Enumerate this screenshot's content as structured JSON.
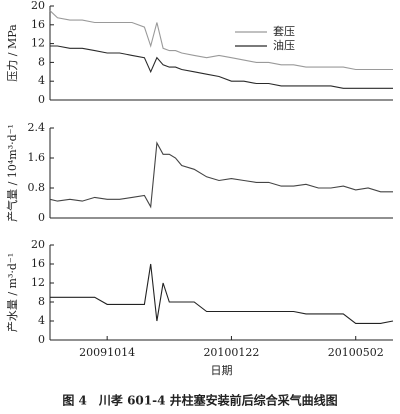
{
  "chart_data": [
    {
      "type": "line",
      "ylabel": "压力 / MPa",
      "x": [
        "20090829",
        "20090904",
        "20090914",
        "20090924",
        "20091004",
        "20091014",
        "20091024",
        "20091103",
        "20091113",
        "20091118",
        "20091123",
        "20091128",
        "20091203",
        "20091208",
        "20091213",
        "20091223",
        "20100102",
        "20100112",
        "20100122",
        "20100201",
        "20100211",
        "20100221",
        "20100303",
        "20100313",
        "20100323",
        "20100402",
        "20100412",
        "20100422",
        "20100502",
        "20100512",
        "20100522",
        "20100601"
      ],
      "xlim": [
        "20090829",
        "20100601"
      ],
      "ylim": [
        0,
        20
      ],
      "yticks": [
        0,
        4,
        8,
        12,
        16,
        20
      ],
      "legend": "upper right",
      "series": [
        {
          "name": "套压",
          "color": "#9a9a9a",
          "values": [
            19,
            17.5,
            17,
            17,
            16.5,
            16.5,
            16.5,
            16.5,
            15.5,
            11.5,
            16.5,
            11,
            10.5,
            10.5,
            10,
            9.5,
            9,
            9.5,
            9,
            8.5,
            8,
            8,
            7.5,
            7.5,
            7,
            7,
            7,
            7,
            6.5,
            6.5,
            6.5,
            6.5
          ]
        },
        {
          "name": "油压",
          "color": "#2a2a2a",
          "values": [
            11.5,
            11.5,
            11,
            11,
            10.5,
            10,
            10,
            9.5,
            9,
            6,
            9,
            7.5,
            7,
            7,
            6.5,
            6,
            5.5,
            5,
            4,
            4,
            3.5,
            3.5,
            3,
            3,
            3,
            3,
            3,
            2.5,
            2.5,
            2.5,
            2.5,
            2.5
          ]
        }
      ]
    },
    {
      "type": "line",
      "ylabel": "产气量 / 10⁴m³·d⁻¹",
      "x": [
        "20090829",
        "20090904",
        "20090914",
        "20090924",
        "20091004",
        "20091014",
        "20091024",
        "20091103",
        "20091113",
        "20091118",
        "20091123",
        "20091128",
        "20091203",
        "20091208",
        "20091213",
        "20091223",
        "20100102",
        "20100112",
        "20100122",
        "20100201",
        "20100211",
        "20100221",
        "20100303",
        "20100313",
        "20100323",
        "20100402",
        "20100412",
        "20100422",
        "20100502",
        "20100512",
        "20100522",
        "20100601"
      ],
      "xlim": [
        "20090829",
        "20100601"
      ],
      "ylim": [
        0,
        2.4
      ],
      "yticks": [
        0,
        0.8,
        1.6,
        2.4
      ],
      "series": [
        {
          "color": "#444444",
          "values": [
            0.5,
            0.45,
            0.5,
            0.45,
            0.55,
            0.5,
            0.5,
            0.55,
            0.6,
            0.3,
            2.0,
            1.7,
            1.7,
            1.6,
            1.4,
            1.3,
            1.1,
            1.0,
            1.05,
            1.0,
            0.95,
            0.95,
            0.85,
            0.85,
            0.9,
            0.8,
            0.8,
            0.85,
            0.75,
            0.8,
            0.7,
            0.7
          ]
        }
      ]
    },
    {
      "type": "line",
      "ylabel": "产水量 / m³·d⁻¹",
      "xlabel": "日期",
      "x": [
        "20090829",
        "20090904",
        "20090914",
        "20090924",
        "20091004",
        "20091014",
        "20091024",
        "20091103",
        "20091113",
        "20091118",
        "20091123",
        "20091128",
        "20091203",
        "20091208",
        "20091213",
        "20091223",
        "20100102",
        "20100112",
        "20100122",
        "20100201",
        "20100211",
        "20100221",
        "20100303",
        "20100313",
        "20100323",
        "20100402",
        "20100412",
        "20100422",
        "20100502",
        "20100512",
        "20100522",
        "20100601"
      ],
      "xlim": [
        "20090829",
        "20100601"
      ],
      "xticks": [
        "20091014",
        "20100122",
        "20100502"
      ],
      "ylim": [
        0,
        20
      ],
      "yticks": [
        0,
        4,
        8,
        12,
        16,
        20
      ],
      "series": [
        {
          "color": "#222222",
          "values": [
            9,
            9,
            9,
            9,
            9,
            7.5,
            7.5,
            7.5,
            7.5,
            16,
            4,
            12,
            8,
            8,
            8,
            8,
            6,
            6,
            6,
            6,
            6,
            6,
            6,
            6,
            5.5,
            5.5,
            5.5,
            5.5,
            3.5,
            3.5,
            3.5,
            4
          ]
        }
      ]
    }
  ],
  "caption": "图 4　川孝 601-4 井柱塞安装前后综合采气曲线图"
}
